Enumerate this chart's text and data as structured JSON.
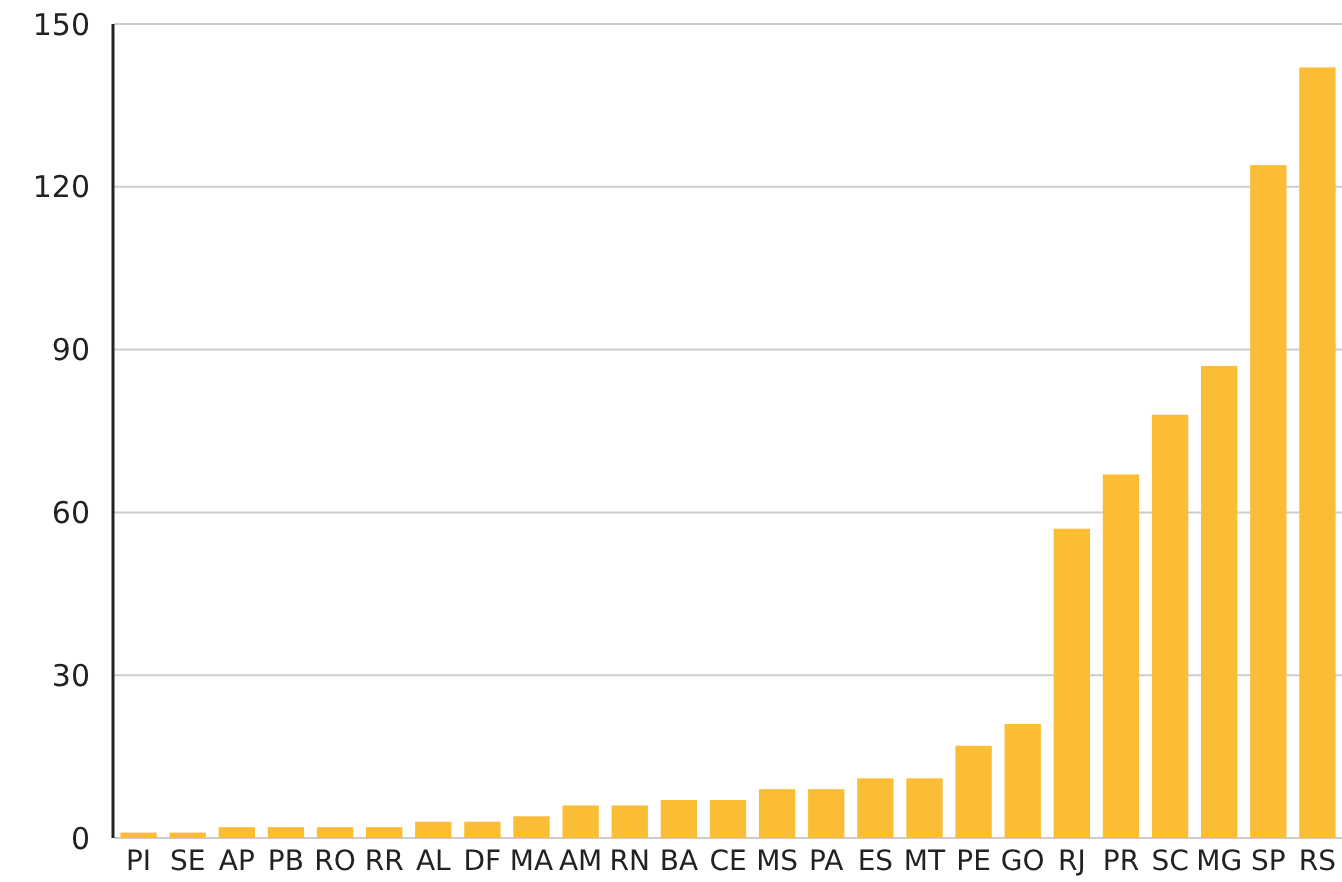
{
  "chart_data": {
    "type": "bar",
    "categories": [
      "PI",
      "SE",
      "AP",
      "PB",
      "RO",
      "RR",
      "AL",
      "DF",
      "MA",
      "AM",
      "RN",
      "BA",
      "CE",
      "MS",
      "PA",
      "ES",
      "MT",
      "PE",
      "GO",
      "RJ",
      "PR",
      "SC",
      "MG",
      "SP",
      "RS"
    ],
    "values": [
      1,
      1,
      2,
      2,
      2,
      2,
      3,
      3,
      4,
      6,
      6,
      7,
      7,
      9,
      9,
      11,
      11,
      17,
      21,
      57,
      67,
      78,
      87,
      124,
      142
    ],
    "color": "#fbbd36",
    "ylim": [
      0,
      150
    ],
    "yticks": [
      0,
      30,
      60,
      90,
      120,
      150
    ],
    "grid": "y"
  }
}
